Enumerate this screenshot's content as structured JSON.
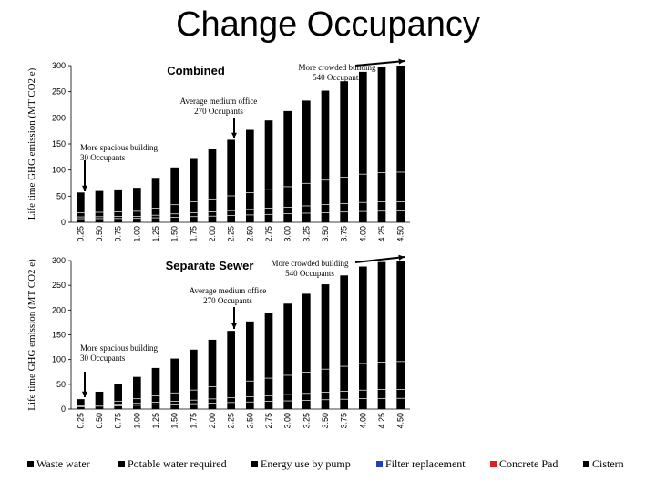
{
  "page_title": "Change Occupancy",
  "chart_data": [
    {
      "type": "bar",
      "stacked": true,
      "title": "Combined",
      "ylabel": "Life time GHG emission (MT CO2 e)",
      "xlabel": "",
      "ylim": [
        0,
        300
      ],
      "yticks": [
        0,
        50,
        100,
        150,
        200,
        250,
        300
      ],
      "categories": [
        "0.25",
        "0.50",
        "0.75",
        "1.00",
        "1.25",
        "1.50",
        "1.75",
        "2.00",
        "2.25",
        "2.50",
        "2.75",
        "3.00",
        "3.25",
        "3.50",
        "3.75",
        "4.00",
        "4.25",
        "4.50"
      ],
      "totals": [
        57,
        60,
        63,
        66,
        85,
        105,
        123,
        140,
        158,
        177,
        195,
        213,
        233,
        252,
        270,
        288,
        297,
        300
      ],
      "annotations": [
        {
          "text": "More spacious building",
          "text2": "30 Occupants",
          "category_index": 0
        },
        {
          "text": "Average medium office",
          "text2": "270 Occupants",
          "category_index": 8
        },
        {
          "text": "More crowded building",
          "text2": "540 Occupants",
          "category_index": 17
        }
      ]
    },
    {
      "type": "bar",
      "stacked": true,
      "title": "Separate Sewer",
      "ylabel": "Life time GHG emission (MT CO2 e)",
      "xlabel": "",
      "ylim": [
        0,
        300
      ],
      "yticks": [
        0,
        50,
        100,
        150,
        200,
        250,
        300
      ],
      "categories": [
        "0.25",
        "0.50",
        "0.75",
        "1.00",
        "1.25",
        "1.50",
        "1.75",
        "2.00",
        "2.25",
        "2.50",
        "2.75",
        "3.00",
        "3.25",
        "3.50",
        "3.75",
        "4.00",
        "4.25",
        "4.50"
      ],
      "totals": [
        20,
        35,
        50,
        65,
        83,
        102,
        120,
        140,
        158,
        177,
        195,
        213,
        233,
        252,
        270,
        288,
        297,
        300
      ],
      "annotations": [
        {
          "text": "More spacious building",
          "text2": "30 Occupants",
          "category_index": 0
        },
        {
          "text": "Average medium office",
          "text2": "270 Occupants",
          "category_index": 8
        },
        {
          "text": "More crowded building",
          "text2": "540 Occupants",
          "category_index": 17
        }
      ]
    }
  ],
  "legend": [
    {
      "label": "Waste water",
      "color": "#000000"
    },
    {
      "label": "Potable water required",
      "color": "#000000"
    },
    {
      "label": "Energy use by pump",
      "color": "#000000"
    },
    {
      "label": "Filter replacement",
      "color": "#1f3fbf"
    },
    {
      "label": "Concrete Pad",
      "color": "#e02020"
    },
    {
      "label": "Cistern",
      "color": "#000000"
    }
  ]
}
